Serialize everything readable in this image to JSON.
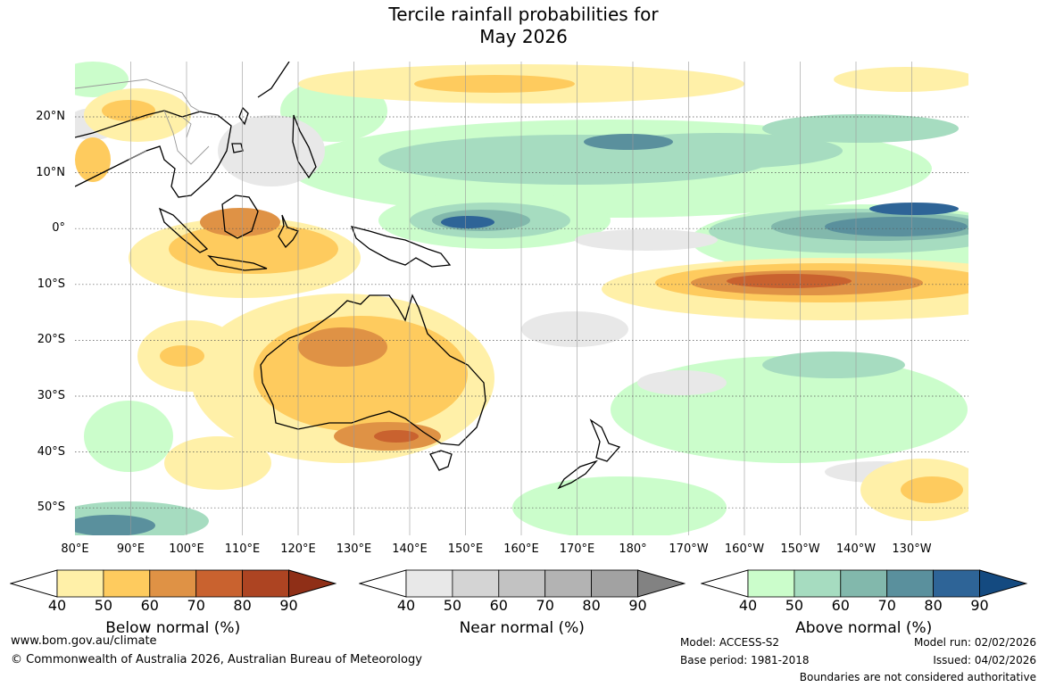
{
  "title_line1": "Tercile rainfall probabilities for",
  "title_line2": "May 2026",
  "latitudes": [
    "20°N",
    "10°N",
    "0°",
    "10°S",
    "20°S",
    "30°S",
    "40°S",
    "50°S"
  ],
  "longitudes": [
    "80°E",
    "90°E",
    "100°E",
    "110°E",
    "120°E",
    "130°E",
    "140°E",
    "150°E",
    "160°E",
    "170°E",
    "180°",
    "170°W",
    "160°W",
    "150°W",
    "140°W",
    "130°W"
  ],
  "legends": [
    {
      "title": "Below normal (%)",
      "ticks": [
        "40",
        "50",
        "60",
        "70",
        "80",
        "90"
      ],
      "colors": [
        "#fff0a8",
        "#fecb5e",
        "#df9245",
        "#c9622f",
        "#ad4422",
        "#8f2f17"
      ]
    },
    {
      "title": "Near normal (%)",
      "ticks": [
        "40",
        "50",
        "60",
        "70",
        "80",
        "90"
      ],
      "colors": [
        "#e8e8e8",
        "#d4d4d4",
        "#c2c2c2",
        "#b3b3b3",
        "#a2a2a2",
        "#828282"
      ]
    },
    {
      "title": "Above normal (%)",
      "ticks": [
        "40",
        "50",
        "60",
        "70",
        "80",
        "90"
      ],
      "colors": [
        "#cbfdcb",
        "#a6dcc0",
        "#82b8ac",
        "#5a909d",
        "#2e6497",
        "#144a80"
      ]
    }
  ],
  "footer": {
    "website": "www.bom.gov.au/climate",
    "copyright": "© Commonwealth of Australia 2026, Australian Bureau of Meteorology",
    "model": "Model: ACCESS-S2",
    "base_period": "Base period: 1981-2018",
    "model_run": "Model run: 02/02/2026",
    "issued": "Issued: 04/02/2026",
    "disclaimer": "Boundaries are not considered authoritative"
  }
}
